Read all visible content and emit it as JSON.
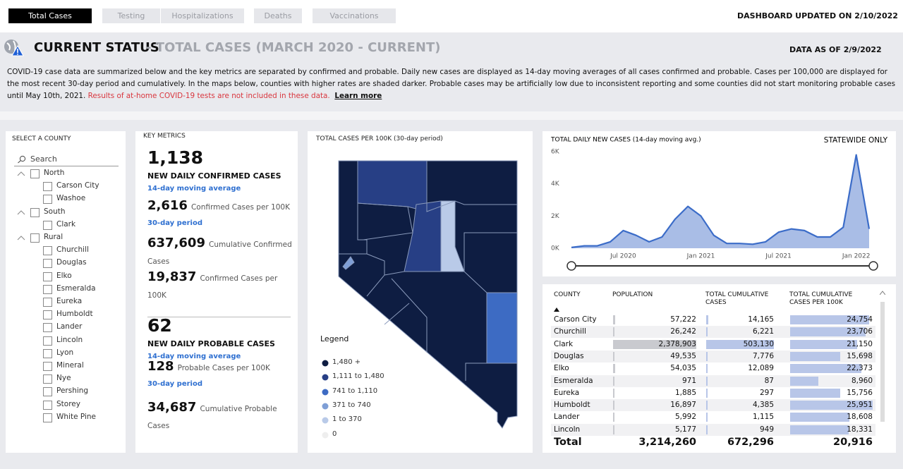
{
  "tabs": [
    "Total Cases",
    "Testing",
    "Hospitalizations",
    "Deaths",
    "Vaccinations"
  ],
  "updated_on": "DASHBOARD UPDATED ON 2/10/2022",
  "header": {
    "title": "CURRENT STATUS",
    "subtitle": "- TOTAL CASES (MARCH 2020 - CURRENT)",
    "data_as_of": "DATA AS OF 2/9/2022"
  },
  "description": {
    "text": "COVID-19 case data are summarized below and the key metrics are separated by confirmed and probable. Daily new cases are displayed as 14-day moving averages of all cases confirmed and probable. Cases per 100,000 are displayed for the most recent 30-day period and cumulatively. In the maps below, counties with higher rates are shaded darker. Probable cases may be artificially low due to inconsistent reporting and some counties did not start monitoring probable cases until May 10th, 2021.",
    "warning": "Results of at-home COVID-19 tests are not included in these data.",
    "link": "Learn more"
  },
  "county_filter": {
    "title": "SELECT A COUNTY",
    "search": "Search",
    "groups": [
      {
        "name": "North",
        "counties": [
          "Carson City",
          "Washoe"
        ]
      },
      {
        "name": "South",
        "counties": [
          "Clark"
        ]
      },
      {
        "name": "Rural",
        "counties": [
          "Churchill",
          "Douglas",
          "Elko",
          "Esmeralda",
          "Eureka",
          "Humboldt",
          "Lander",
          "Lincoln",
          "Lyon",
          "Mineral",
          "Nye",
          "Pershing",
          "Storey",
          "White Pine"
        ]
      }
    ]
  },
  "key_metrics": {
    "title": "KEY METRICS",
    "items": [
      {
        "value": "1,138",
        "label": "NEW DAILY CONFIRMED CASES",
        "sub": "14-day moving average"
      },
      {
        "value": "2,616",
        "label": "Confirmed Cases per 100K",
        "sub": "30-day period"
      },
      {
        "value": "637,609",
        "label": "Cumulative Confirmed Cases"
      },
      {
        "value": "19,837",
        "label": "Confirmed Cases per 100K"
      },
      {
        "value": "62",
        "label": "NEW DAILY PROBABLE CASES",
        "sub": "14-day moving average"
      },
      {
        "value": "128",
        "label": "Probable Cases per 100K",
        "sub": "30-day period"
      },
      {
        "value": "34,687",
        "label": "Cumulative Probable Cases"
      }
    ]
  },
  "map": {
    "title": "TOTAL CASES PER 100K (30-day period)",
    "legend": {
      "title": "Legend",
      "items": [
        {
          "label": "1,480 +",
          "color": "#0e1d42"
        },
        {
          "label": "1,111 to 1,480",
          "color": "#273f85"
        },
        {
          "label": "741 to 1,110",
          "color": "#3d6bc3"
        },
        {
          "label": "371 to 740",
          "color": "#7f9fd6"
        },
        {
          "label": "1 to 370",
          "color": "#b9cae8"
        },
        {
          "label": "0",
          "color": "#eeeeee"
        }
      ]
    }
  },
  "chart_data": {
    "type": "line",
    "title": "TOTAL DAILY NEW CASES (14-day moving avg.)",
    "note": "STATEWIDE ONLY",
    "x": [
      "2020-03",
      "2020-04",
      "2020-05",
      "2020-06",
      "2020-07",
      "2020-08",
      "2020-09",
      "2020-10",
      "2020-11",
      "2020-12",
      "2021-01",
      "2021-02",
      "2021-03",
      "2021-04",
      "2021-05",
      "2021-06",
      "2021-07",
      "2021-08",
      "2021-09",
      "2021-10",
      "2021-11",
      "2021-12",
      "2022-01",
      "2022-02"
    ],
    "values": [
      50,
      150,
      150,
      400,
      1100,
      800,
      400,
      700,
      1800,
      2600,
      2000,
      800,
      300,
      300,
      250,
      400,
      1000,
      1200,
      1100,
      700,
      700,
      1300,
      5800,
      1200
    ],
    "color": "#3b6cc8",
    "fill": "#a9bde6",
    "xlim": [
      "2020-03",
      "2022-02"
    ],
    "xticks": [
      {
        "value": "2020-07",
        "label": "Jul 2020"
      },
      {
        "value": "2021-01",
        "label": "Jan 2021"
      },
      {
        "value": "2021-07",
        "label": "Jul 2021"
      },
      {
        "value": "2022-01",
        "label": "Jan 2022"
      }
    ],
    "ylim": [
      0,
      6000
    ],
    "yticks": [
      {
        "value": 0,
        "label": "0K"
      },
      {
        "value": 2000,
        "label": "2K"
      },
      {
        "value": 4000,
        "label": "4K"
      },
      {
        "value": 6000,
        "label": "6K"
      }
    ]
  },
  "table": {
    "columns": [
      "COUNTY",
      "POPULATION",
      "TOTAL CUMULATIVE CASES",
      "TOTAL CUMULATIVE CASES PER 100K"
    ],
    "rows": [
      [
        "Carson City",
        "57,222",
        "14,165",
        "24,754"
      ],
      [
        "Churchill",
        "26,242",
        "6,221",
        "23,706"
      ],
      [
        "Clark",
        "2,378,903",
        "503,130",
        "21,150"
      ],
      [
        "Douglas",
        "49,535",
        "7,776",
        "15,698"
      ],
      [
        "Elko",
        "54,035",
        "12,089",
        "22,373"
      ],
      [
        "Esmeralda",
        "971",
        "87",
        "8,960"
      ],
      [
        "Eureka",
        "1,885",
        "297",
        "15,756"
      ],
      [
        "Humboldt",
        "16,897",
        "4,385",
        "25,951"
      ],
      [
        "Lander",
        "5,992",
        "1,115",
        "18,608"
      ],
      [
        "Lincoln",
        "5,177",
        "949",
        "18,331"
      ]
    ],
    "total": [
      "Total",
      "3,214,260",
      "672,296",
      "20,916"
    ]
  }
}
